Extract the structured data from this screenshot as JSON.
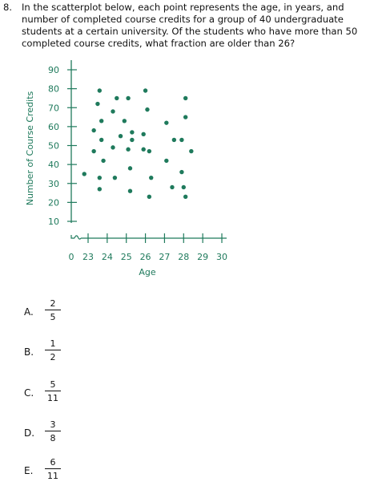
{
  "question": {
    "number": "8.",
    "text": "In the scatterplot below, each point represents the age, in years, and number of completed course credits for a group of 40 undergraduate students at a certain university. Of the students who have more than 50 completed course credits, what fraction are older than 26?"
  },
  "colors": {
    "accent": "#1f7a5c",
    "point": "#1f7a5c",
    "text": "#111111"
  },
  "chart_data": {
    "type": "scatter",
    "xlabel": "Age",
    "ylabel": "Number of Course Credits",
    "x_ticks": [
      "0",
      "23",
      "24",
      "25",
      "26",
      "27",
      "28",
      "29",
      "30"
    ],
    "y_ticks": [
      "10",
      "20",
      "30",
      "40",
      "50",
      "60",
      "70",
      "80",
      "90"
    ],
    "xlim": [
      22.6,
      30
    ],
    "ylim": [
      5,
      92
    ],
    "x_axis_break": true,
    "grid": false,
    "points": [
      {
        "x": 23.6,
        "y": 79
      },
      {
        "x": 23.5,
        "y": 72
      },
      {
        "x": 23.7,
        "y": 63
      },
      {
        "x": 23.3,
        "y": 58
      },
      {
        "x": 23.7,
        "y": 53
      },
      {
        "x": 23.3,
        "y": 47
      },
      {
        "x": 23.8,
        "y": 42
      },
      {
        "x": 22.8,
        "y": 35
      },
      {
        "x": 23.6,
        "y": 33
      },
      {
        "x": 23.6,
        "y": 27
      },
      {
        "x": 24.3,
        "y": 68
      },
      {
        "x": 24.5,
        "y": 75
      },
      {
        "x": 24.7,
        "y": 55
      },
      {
        "x": 24.3,
        "y": 49
      },
      {
        "x": 24.4,
        "y": 33
      },
      {
        "x": 24.9,
        "y": 63
      },
      {
        "x": 25.1,
        "y": 75
      },
      {
        "x": 25.3,
        "y": 57
      },
      {
        "x": 25.1,
        "y": 48
      },
      {
        "x": 25.2,
        "y": 38
      },
      {
        "x": 25.3,
        "y": 53
      },
      {
        "x": 25.2,
        "y": 26
      },
      {
        "x": 26.0,
        "y": 79
      },
      {
        "x": 26.1,
        "y": 69
      },
      {
        "x": 25.9,
        "y": 56
      },
      {
        "x": 25.9,
        "y": 48
      },
      {
        "x": 26.2,
        "y": 47
      },
      {
        "x": 26.3,
        "y": 33
      },
      {
        "x": 26.2,
        "y": 23
      },
      {
        "x": 27.1,
        "y": 62
      },
      {
        "x": 27.5,
        "y": 53
      },
      {
        "x": 27.1,
        "y": 42
      },
      {
        "x": 27.4,
        "y": 28
      },
      {
        "x": 27.9,
        "y": 53
      },
      {
        "x": 28.1,
        "y": 75
      },
      {
        "x": 28.1,
        "y": 65
      },
      {
        "x": 28.4,
        "y": 47
      },
      {
        "x": 27.9,
        "y": 36
      },
      {
        "x": 28.0,
        "y": 28
      },
      {
        "x": 28.1,
        "y": 23
      }
    ]
  },
  "choices": [
    {
      "letter": "A.",
      "num": "2",
      "den": "5"
    },
    {
      "letter": "B.",
      "num": "1",
      "den": "2"
    },
    {
      "letter": "C.",
      "num": "5",
      "den": "11"
    },
    {
      "letter": "D.",
      "num": "3",
      "den": "8"
    },
    {
      "letter": "E.",
      "num": "6",
      "den": "11"
    }
  ]
}
